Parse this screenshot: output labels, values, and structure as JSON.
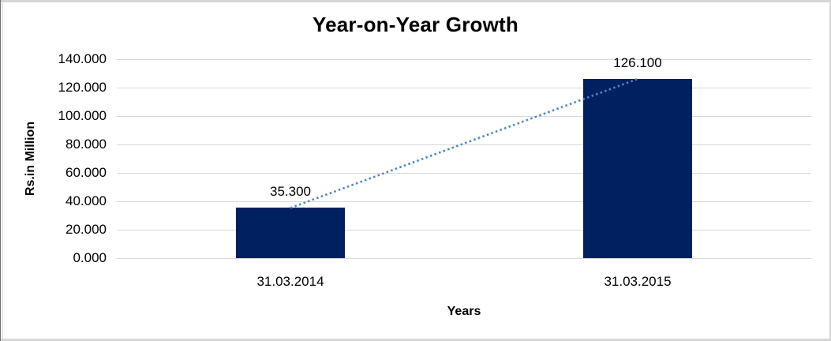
{
  "chart_data": {
    "type": "bar",
    "title": "Year-on-Year Growth",
    "xlabel": "Years",
    "ylabel": "Rs.in Million",
    "categories": [
      "31.03.2014",
      "31.03.2015"
    ],
    "values": [
      35300,
      126100
    ],
    "data_labels": [
      "35.300",
      "126.100"
    ],
    "yticks": [
      {
        "value": 0,
        "label": "0.000"
      },
      {
        "value": 20000,
        "label": "20.000"
      },
      {
        "value": 40000,
        "label": "40.000"
      },
      {
        "value": 60000,
        "label": "60.000"
      },
      {
        "value": 80000,
        "label": "80.000"
      },
      {
        "value": 100000,
        "label": "100.000"
      },
      {
        "value": 120000,
        "label": "120.000"
      },
      {
        "value": 140000,
        "label": "140.000"
      }
    ],
    "ylim": [
      0,
      140000
    ],
    "grid": "horizontal",
    "legend": "none",
    "bar_color": "#002060",
    "gridline_color": "#d9d9d9",
    "text_color": "#000000",
    "trendline": {
      "type": "linear",
      "style": "dotted",
      "color": "#4a86c8"
    }
  }
}
